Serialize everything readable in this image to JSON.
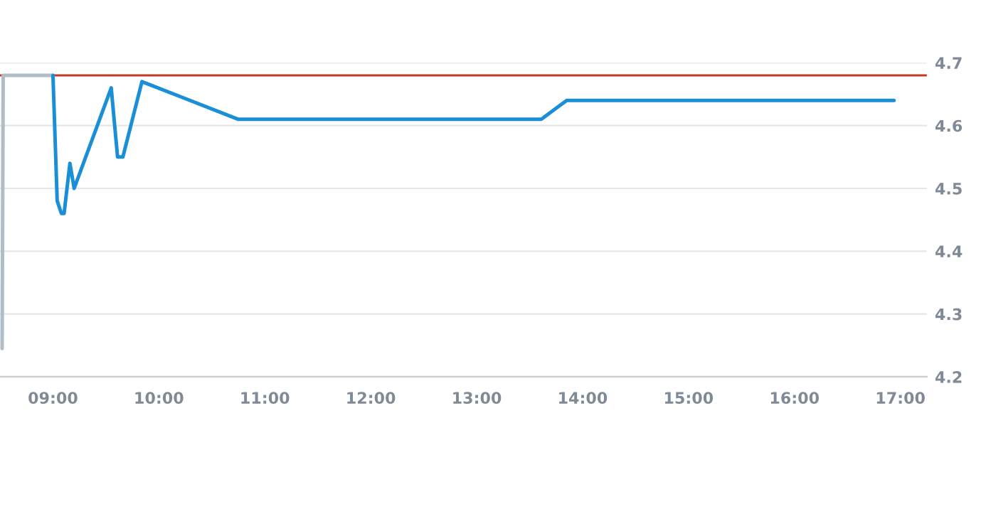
{
  "chart_data": {
    "type": "line",
    "series": [
      {
        "color": "#b0bcc6",
        "x": [
          8.52,
          8.53,
          9.0
        ],
        "values": [
          4.245,
          4.68,
          4.68
        ]
      },
      {
        "color": "#1a8fd8",
        "x": [
          9.0,
          9.04,
          9.08,
          9.105,
          9.16,
          9.2,
          9.55,
          9.61,
          9.66,
          9.84,
          10.75,
          13.61,
          13.85,
          16.94
        ],
        "values": [
          4.68,
          4.48,
          4.46,
          4.46,
          4.54,
          4.5,
          4.66,
          4.55,
          4.55,
          4.67,
          4.61,
          4.61,
          4.64,
          4.64
        ]
      }
    ],
    "xlim": [
      8.5,
      17.25
    ],
    "ylim": [
      4.2,
      4.7
    ],
    "xticks": [
      {
        "value": 9,
        "label": "09:00"
      },
      {
        "value": 10,
        "label": "10:00"
      },
      {
        "value": 11,
        "label": "11:00"
      },
      {
        "value": 12,
        "label": "12:00"
      },
      {
        "value": 13,
        "label": "13:00"
      },
      {
        "value": 14,
        "label": "14:00"
      },
      {
        "value": 15,
        "label": "15:00"
      },
      {
        "value": 16,
        "label": "16:00"
      },
      {
        "value": 17,
        "label": "17:00"
      }
    ],
    "yticks": [
      4.2,
      4.3,
      4.4,
      4.5,
      4.6,
      4.7
    ],
    "ref_lines": [
      {
        "axis": "y",
        "value": 4.68,
        "color": "#c0392b"
      }
    ],
    "grid": "y",
    "legend": false,
    "marker": "none",
    "line_style": "solid"
  }
}
